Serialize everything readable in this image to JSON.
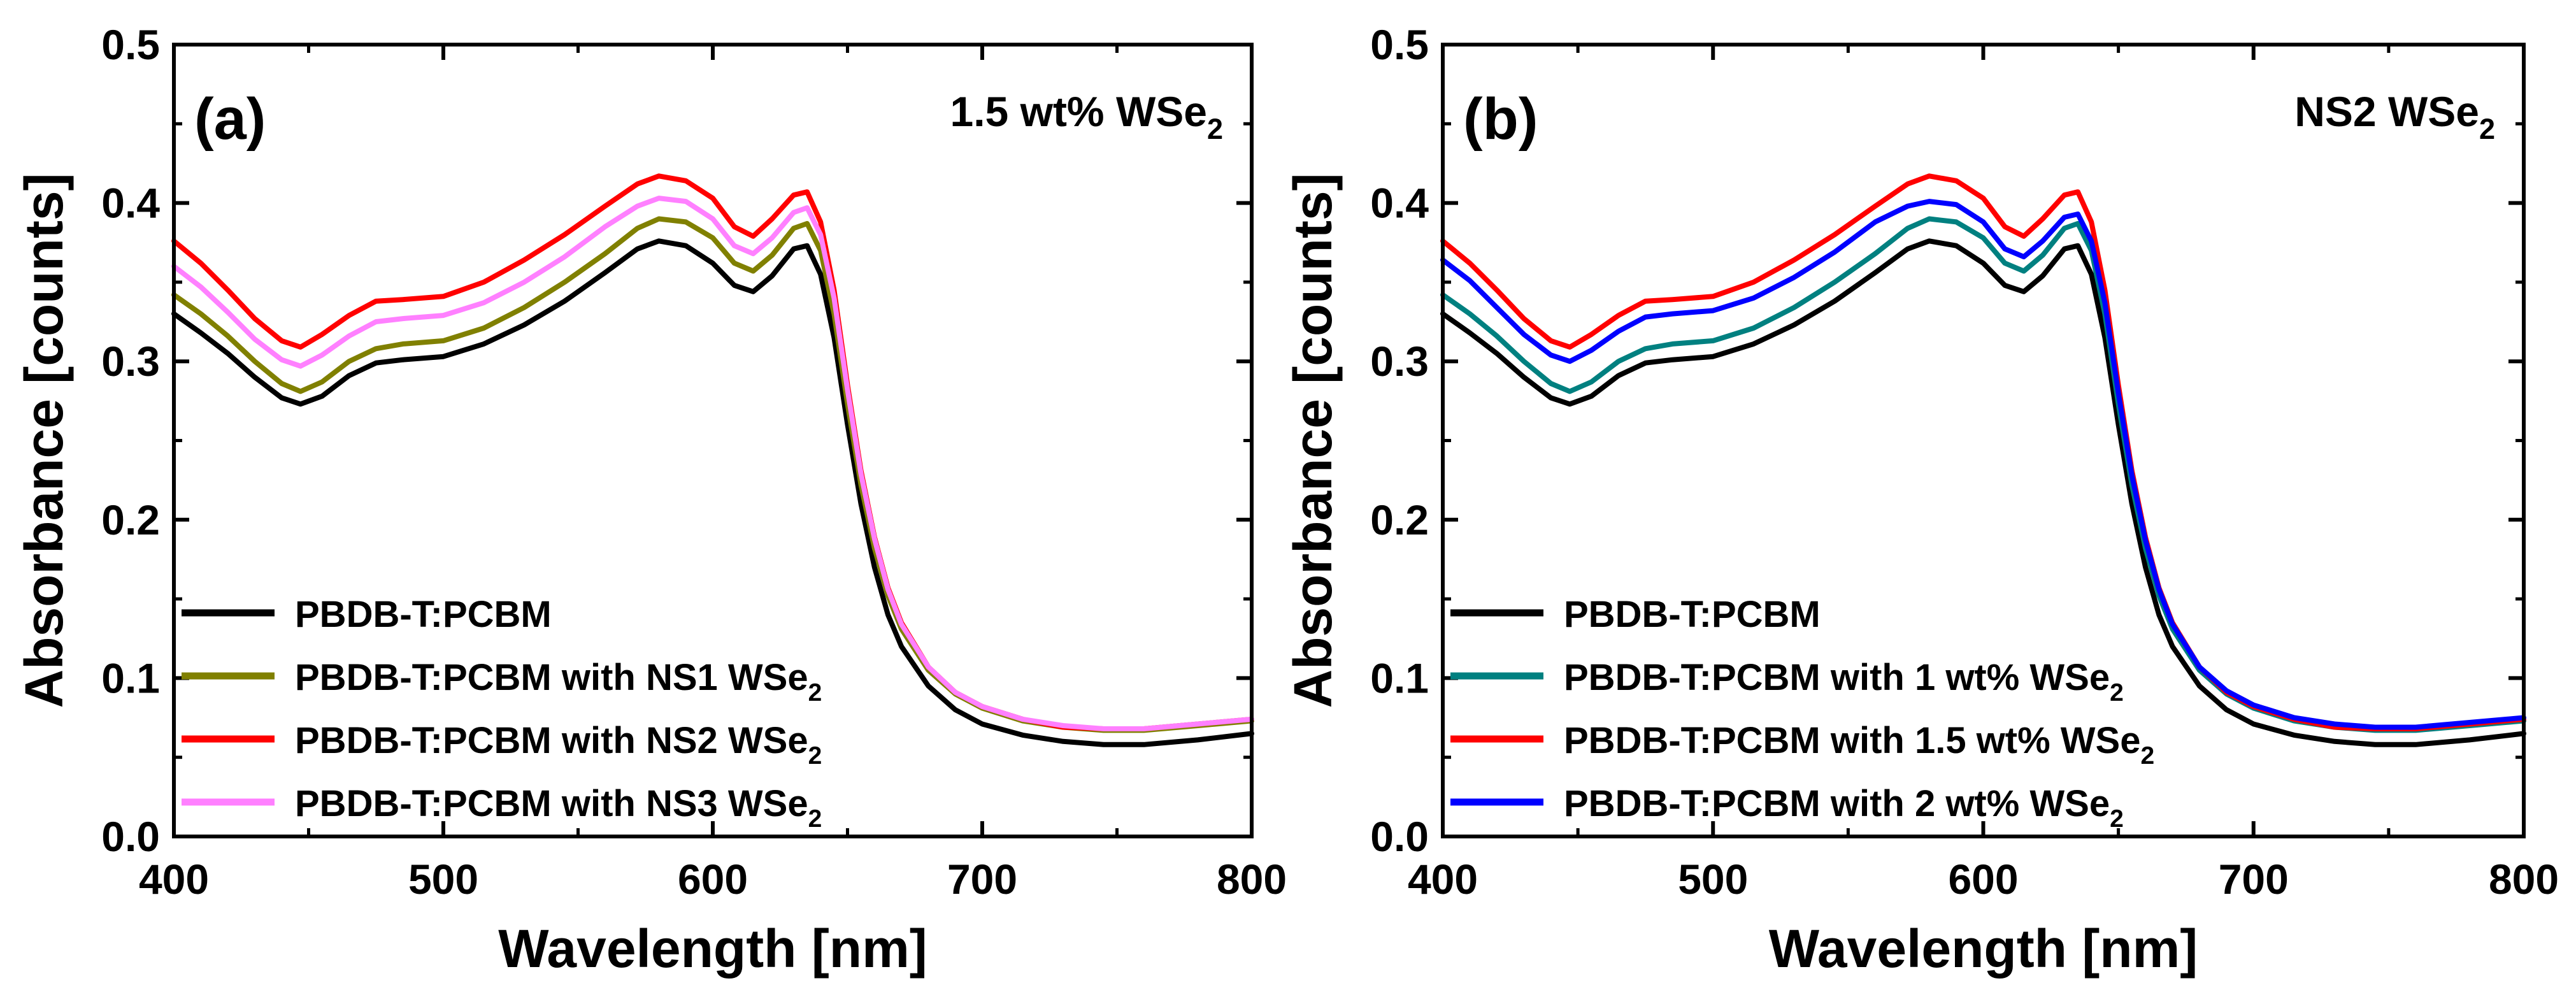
{
  "chart_data": [
    {
      "type": "line",
      "panel_label": "(a)",
      "annotation": {
        "text": "1.5 wt% WSe",
        "subscript": "2"
      },
      "xlabel": "Wavelength [nm]",
      "ylabel": "Absorbance [counts]",
      "xlim": [
        400,
        800
      ],
      "ylim": [
        0.0,
        0.5
      ],
      "xticks": [
        "400",
        "500",
        "600",
        "700",
        "800"
      ],
      "yticks": [
        "0.0",
        "0.1",
        "0.2",
        "0.3",
        "0.4",
        "0.5"
      ],
      "grid": false,
      "legend_position": "bottom-left",
      "x": [
        400,
        410,
        420,
        430,
        440,
        447,
        455,
        465,
        475,
        485,
        500,
        515,
        530,
        545,
        560,
        572,
        580,
        590,
        600,
        608,
        615,
        622,
        630,
        635,
        640,
        645,
        650,
        655,
        660,
        665,
        670,
        680,
        690,
        700,
        715,
        730,
        745,
        760,
        780,
        800
      ],
      "series": [
        {
          "name": "PBDB-T:PCBM",
          "subscript": "",
          "color": "#000000",
          "values": [
            0.33,
            0.318,
            0.305,
            0.29,
            0.277,
            0.273,
            0.278,
            0.291,
            0.299,
            0.301,
            0.303,
            0.311,
            0.323,
            0.338,
            0.356,
            0.371,
            0.376,
            0.373,
            0.362,
            0.348,
            0.344,
            0.354,
            0.371,
            0.373,
            0.355,
            0.315,
            0.26,
            0.21,
            0.17,
            0.14,
            0.12,
            0.095,
            0.08,
            0.071,
            0.064,
            0.06,
            0.058,
            0.058,
            0.061,
            0.065
          ]
        },
        {
          "name": "PBDB-T:PCBM with NS1 WSe",
          "subscript": "2",
          "color": "#808000",
          "values": [
            0.342,
            0.33,
            0.316,
            0.3,
            0.286,
            0.281,
            0.287,
            0.3,
            0.308,
            0.311,
            0.313,
            0.321,
            0.334,
            0.35,
            0.368,
            0.384,
            0.39,
            0.388,
            0.378,
            0.362,
            0.357,
            0.367,
            0.384,
            0.387,
            0.37,
            0.33,
            0.273,
            0.222,
            0.182,
            0.152,
            0.131,
            0.105,
            0.09,
            0.081,
            0.073,
            0.069,
            0.067,
            0.067,
            0.07,
            0.073
          ]
        },
        {
          "name": "PBDB-T:PCBM with NS2 WSe",
          "subscript": "2",
          "color": "#ff0000",
          "values": [
            0.376,
            0.362,
            0.345,
            0.327,
            0.313,
            0.309,
            0.317,
            0.329,
            0.338,
            0.339,
            0.341,
            0.35,
            0.364,
            0.38,
            0.398,
            0.412,
            0.417,
            0.414,
            0.403,
            0.385,
            0.379,
            0.39,
            0.405,
            0.407,
            0.388,
            0.345,
            0.285,
            0.231,
            0.189,
            0.157,
            0.135,
            0.107,
            0.091,
            0.082,
            0.074,
            0.069,
            0.068,
            0.068,
            0.071,
            0.074
          ]
        },
        {
          "name": "PBDB-T:PCBM with NS3 WSe",
          "subscript": "2",
          "color": "#ff80ff",
          "values": [
            0.36,
            0.347,
            0.331,
            0.314,
            0.301,
            0.297,
            0.304,
            0.316,
            0.325,
            0.327,
            0.329,
            0.337,
            0.35,
            0.366,
            0.385,
            0.398,
            0.403,
            0.401,
            0.39,
            0.373,
            0.368,
            0.378,
            0.394,
            0.397,
            0.38,
            0.34,
            0.282,
            0.229,
            0.188,
            0.156,
            0.134,
            0.107,
            0.091,
            0.082,
            0.074,
            0.07,
            0.068,
            0.068,
            0.071,
            0.074
          ]
        }
      ]
    },
    {
      "type": "line",
      "panel_label": "(b)",
      "annotation": {
        "text": "NS2 WSe",
        "subscript": "2"
      },
      "xlabel": "Wavelength [nm]",
      "ylabel": "Absorbance [counts]",
      "xlim": [
        400,
        800
      ],
      "ylim": [
        0.0,
        0.5
      ],
      "xticks": [
        "400",
        "500",
        "600",
        "700",
        "800"
      ],
      "yticks": [
        "0.0",
        "0.1",
        "0.2",
        "0.3",
        "0.4",
        "0.5"
      ],
      "grid": false,
      "legend_position": "bottom-left",
      "x": [
        400,
        410,
        420,
        430,
        440,
        447,
        455,
        465,
        475,
        485,
        500,
        515,
        530,
        545,
        560,
        572,
        580,
        590,
        600,
        608,
        615,
        622,
        630,
        635,
        640,
        645,
        650,
        655,
        660,
        665,
        670,
        680,
        690,
        700,
        715,
        730,
        745,
        760,
        780,
        800
      ],
      "series": [
        {
          "name": "PBDB-T:PCBM",
          "subscript": "",
          "color": "#000000",
          "values": [
            0.33,
            0.318,
            0.305,
            0.29,
            0.277,
            0.273,
            0.278,
            0.291,
            0.299,
            0.301,
            0.303,
            0.311,
            0.323,
            0.338,
            0.356,
            0.371,
            0.376,
            0.373,
            0.362,
            0.348,
            0.344,
            0.354,
            0.371,
            0.373,
            0.355,
            0.315,
            0.26,
            0.21,
            0.17,
            0.14,
            0.12,
            0.095,
            0.08,
            0.071,
            0.064,
            0.06,
            0.058,
            0.058,
            0.061,
            0.065
          ]
        },
        {
          "name": "PBDB-T:PCBM with 1 wt% WSe",
          "subscript": "2",
          "color": "#008080",
          "values": [
            0.342,
            0.33,
            0.316,
            0.3,
            0.286,
            0.281,
            0.287,
            0.3,
            0.308,
            0.311,
            0.313,
            0.321,
            0.334,
            0.35,
            0.368,
            0.384,
            0.39,
            0.388,
            0.378,
            0.362,
            0.357,
            0.367,
            0.384,
            0.387,
            0.37,
            0.33,
            0.273,
            0.222,
            0.182,
            0.152,
            0.131,
            0.105,
            0.09,
            0.081,
            0.073,
            0.069,
            0.067,
            0.067,
            0.07,
            0.073
          ]
        },
        {
          "name": "PBDB-T:PCBM with 1.5 wt% WSe",
          "subscript": "2",
          "color": "#ff0000",
          "values": [
            0.376,
            0.362,
            0.345,
            0.327,
            0.313,
            0.309,
            0.317,
            0.329,
            0.338,
            0.339,
            0.341,
            0.35,
            0.364,
            0.38,
            0.398,
            0.412,
            0.417,
            0.414,
            0.403,
            0.385,
            0.379,
            0.39,
            0.405,
            0.407,
            0.388,
            0.345,
            0.285,
            0.231,
            0.189,
            0.157,
            0.135,
            0.107,
            0.091,
            0.082,
            0.074,
            0.069,
            0.068,
            0.068,
            0.071,
            0.074
          ]
        },
        {
          "name": "PBDB-T:PCBM with 2 wt% WSe",
          "subscript": "2",
          "color": "#0000ff",
          "values": [
            0.364,
            0.351,
            0.334,
            0.317,
            0.304,
            0.3,
            0.307,
            0.319,
            0.328,
            0.33,
            0.332,
            0.34,
            0.353,
            0.369,
            0.388,
            0.398,
            0.401,
            0.399,
            0.388,
            0.371,
            0.366,
            0.376,
            0.391,
            0.393,
            0.376,
            0.337,
            0.28,
            0.228,
            0.187,
            0.156,
            0.134,
            0.107,
            0.092,
            0.083,
            0.075,
            0.071,
            0.069,
            0.069,
            0.072,
            0.075
          ]
        }
      ]
    }
  ]
}
